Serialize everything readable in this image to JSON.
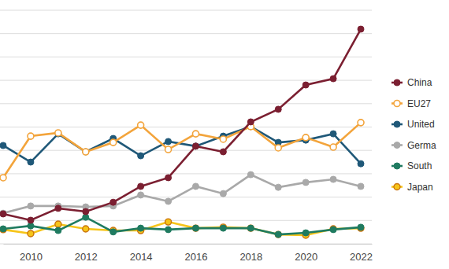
{
  "chart_data": {
    "type": "line",
    "x": [
      2009,
      2010,
      2011,
      2012,
      2013,
      2014,
      2015,
      2016,
      2017,
      2018,
      2019,
      2020,
      2021,
      2022
    ],
    "xlim": [
      2009,
      2022.4
    ],
    "xticks": [
      2010,
      2012,
      2014,
      2016,
      2018,
      2020,
      2022
    ],
    "ylim": [
      0,
      10
    ],
    "yticks": [
      0,
      1,
      2,
      3,
      4,
      5,
      6,
      7,
      8,
      9,
      10
    ],
    "grid": true,
    "tick_labels": "x",
    "legend": "right",
    "series": [
      {
        "name": "China",
        "color": "#7b1f31",
        "marker": "circle",
        "values": [
          1.28,
          1.01,
          1.52,
          1.38,
          1.78,
          2.46,
          2.83,
          4.18,
          3.94,
          5.22,
          5.76,
          6.8,
          7.07,
          9.19
        ]
      },
      {
        "name": "EU27",
        "color": "#f3a43b",
        "marker": "open-circle",
        "values": [
          2.83,
          4.61,
          4.75,
          3.94,
          4.34,
          5.08,
          4.04,
          4.71,
          4.48,
          5.02,
          4.11,
          4.55,
          4.14,
          5.19
        ]
      },
      {
        "name": "United",
        "color": "#1f5878",
        "marker": "circle",
        "values": [
          4.21,
          3.5,
          4.71,
          3.94,
          4.51,
          3.77,
          4.38,
          4.18,
          4.61,
          5.02,
          4.34,
          4.44,
          4.71,
          3.43
        ]
      },
      {
        "name": "Germa",
        "color": "#a9a9a9",
        "marker": "circle",
        "values": [
          1.31,
          1.62,
          1.62,
          1.58,
          1.62,
          2.09,
          1.82,
          2.46,
          2.15,
          2.96,
          2.42,
          2.63,
          2.76,
          2.46
        ]
      },
      {
        "name": "South",
        "color": "#1f7b60",
        "marker": "circle",
        "values": [
          0.64,
          0.77,
          0.57,
          1.14,
          0.51,
          0.67,
          0.61,
          0.67,
          0.67,
          0.67,
          0.4,
          0.47,
          0.61,
          0.71
        ]
      },
      {
        "name": "Japan",
        "color": "#f6c419",
        "marker": "outlined-circle",
        "values": [
          0.61,
          0.44,
          0.84,
          0.64,
          0.57,
          0.57,
          0.94,
          0.67,
          0.71,
          0.67,
          0.4,
          0.37,
          0.64,
          0.67
        ]
      }
    ]
  }
}
